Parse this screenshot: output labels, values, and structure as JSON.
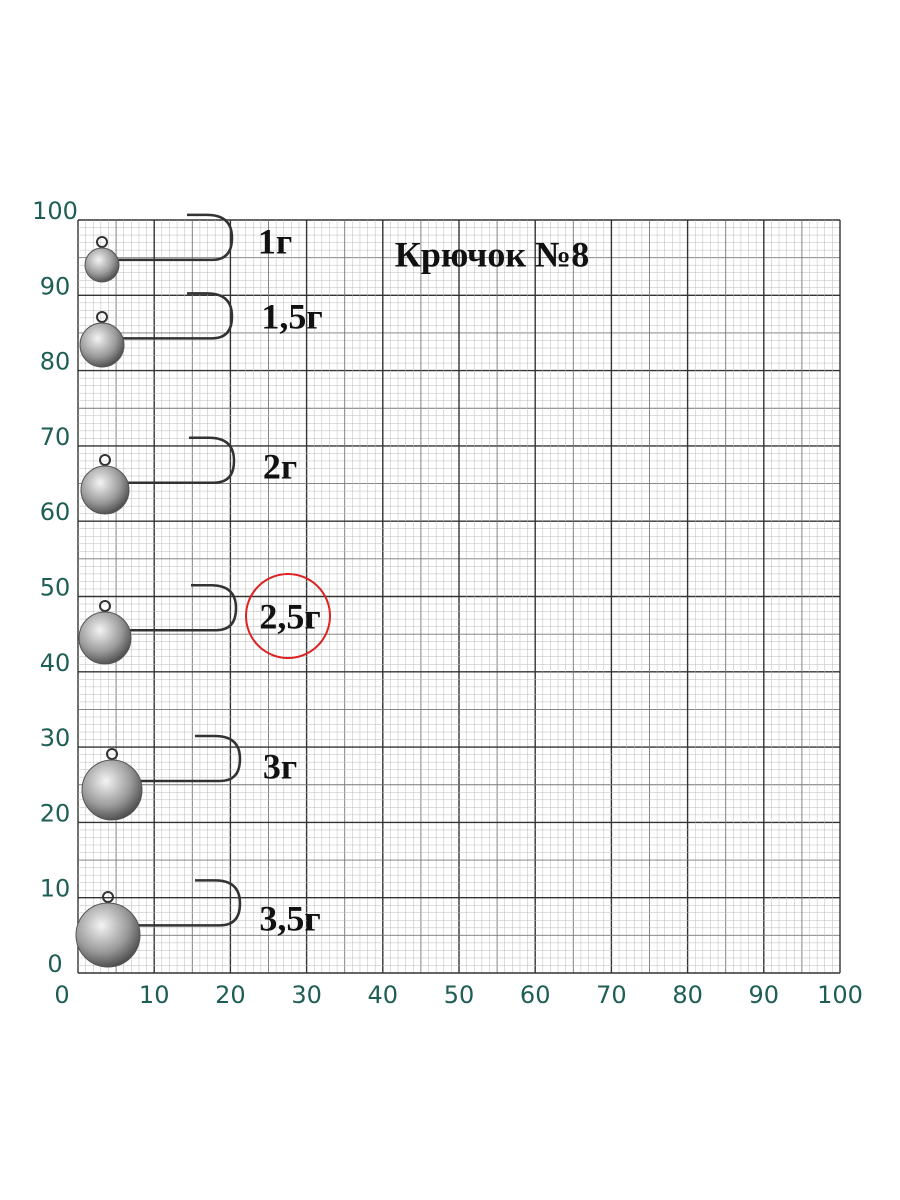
{
  "title": "Крючок №8",
  "weights": [
    "1г",
    "1,5г",
    "2г",
    "2,5г",
    "3г",
    "3,5г"
  ],
  "y_axis": [
    0,
    10,
    20,
    30,
    40,
    50,
    60,
    70,
    80,
    90,
    100
  ],
  "x_axis": [
    0,
    10,
    20,
    30,
    40,
    50,
    60,
    70,
    80,
    90,
    100
  ]
}
